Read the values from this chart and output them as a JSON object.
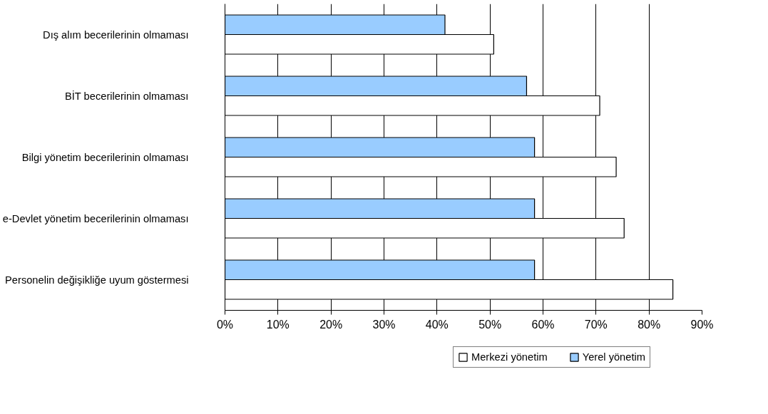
{
  "chart_data": {
    "type": "bar",
    "orientation": "horizontal",
    "categories": [
      "Dış alım becerilerinin olmaması",
      "BİT becerilerinin olmaması",
      "Bilgi yönetim becerilerinin olmaması",
      "e-Devlet yönetim becerilerinin olmaması",
      "Personelin değişikliğe uyum göstermesi"
    ],
    "series": [
      {
        "name": "Merkezi yönetim",
        "color": "#ffffff",
        "values": [
          50.7,
          70.7,
          73.8,
          75.3,
          84.5
        ]
      },
      {
        "name": "Yerel yönetim",
        "color": "#99ccff",
        "values": [
          41.5,
          56.9,
          58.4,
          58.4,
          58.4
        ]
      }
    ],
    "xlim": [
      0,
      90
    ],
    "xticks": [
      {
        "value": 0,
        "label": "0%"
      },
      {
        "value": 10,
        "label": "10%"
      },
      {
        "value": 20,
        "label": "20%"
      },
      {
        "value": 30,
        "label": "30%"
      },
      {
        "value": 40,
        "label": "40%"
      },
      {
        "value": 50,
        "label": "50%"
      },
      {
        "value": 60,
        "label": "60%"
      },
      {
        "value": 70,
        "label": "70%"
      },
      {
        "value": 80,
        "label": "80%"
      },
      {
        "value": 90,
        "label": "90%"
      }
    ],
    "grid": "x",
    "legend": "bottom"
  }
}
